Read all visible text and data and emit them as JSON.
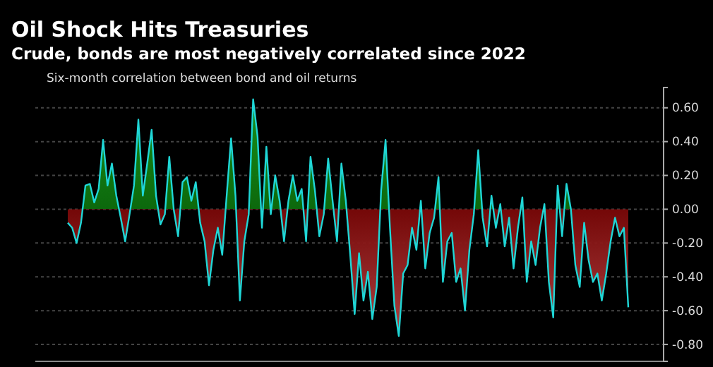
{
  "chart_data": {
    "type": "area",
    "title": "Oil Shock Hits Treasuries",
    "subtitle": "Crude, bonds are most negatively correlated since 2022",
    "annotations": [
      "Six-month correlation between bond and oil returns"
    ],
    "categories": [
      null,
      null,
      null,
      null,
      null,
      null,
      null,
      null,
      null,
      null,
      null,
      null,
      null,
      null,
      null,
      null,
      null,
      null,
      null,
      null,
      null,
      null,
      null,
      null,
      null,
      null,
      null,
      null,
      null,
      null,
      null,
      null,
      null,
      null,
      null,
      null,
      null,
      null,
      null,
      null,
      null,
      null,
      null,
      null,
      null,
      null,
      null,
      null,
      null,
      null,
      null,
      null,
      null,
      null,
      null,
      null,
      null,
      null,
      null,
      null,
      null,
      null,
      null,
      null,
      null,
      null,
      null,
      null,
      null,
      null,
      null,
      null,
      null,
      null,
      null,
      null,
      null,
      null,
      null,
      null,
      null,
      null,
      null,
      null,
      null,
      null,
      null,
      null,
      null,
      null,
      null,
      null,
      null,
      null,
      null,
      null,
      null,
      null,
      null,
      null,
      null,
      null,
      null,
      null,
      null,
      null,
      null,
      null,
      null,
      null,
      null,
      null,
      null,
      null,
      null,
      null,
      null,
      null,
      null,
      null,
      null,
      null,
      null,
      null,
      null,
      null,
      null,
      null
    ],
    "series": [
      {
        "color": "#1fd6d6",
        "values": [
          -0.08,
          -0.11,
          -0.2,
          -0.08,
          0.14,
          0.15,
          0.04,
          0.12,
          0.41,
          0.14,
          0.27,
          0.08,
          -0.05,
          -0.19,
          -0.03,
          0.14,
          0.53,
          0.08,
          0.27,
          0.47,
          0.08,
          -0.09,
          -0.03,
          0.31,
          0.0,
          -0.16,
          0.16,
          0.19,
          0.05,
          0.16,
          -0.08,
          -0.19,
          -0.45,
          -0.24,
          -0.11,
          -0.27,
          0.08,
          0.42,
          0.08,
          -0.54,
          -0.19,
          -0.03,
          0.65,
          0.43,
          -0.11,
          0.37,
          -0.03,
          0.2,
          0.05,
          -0.19,
          0.05,
          0.2,
          0.05,
          0.12,
          -0.19,
          0.31,
          0.11,
          -0.16,
          -0.03,
          0.3,
          0.05,
          -0.19,
          0.27,
          0.05,
          -0.27,
          -0.62,
          -0.26,
          -0.54,
          -0.37,
          -0.65,
          -0.46,
          0.11,
          0.41,
          -0.11,
          -0.57,
          -0.75,
          -0.38,
          -0.33,
          -0.11,
          -0.24,
          0.05,
          -0.35,
          -0.14,
          -0.05,
          0.19,
          -0.43,
          -0.19,
          -0.14,
          -0.43,
          -0.35,
          -0.6,
          -0.24,
          -0.03,
          0.35,
          -0.05,
          -0.22,
          0.08,
          -0.11,
          0.03,
          -0.22,
          -0.05,
          -0.35,
          -0.11,
          0.07,
          -0.43,
          -0.19,
          -0.33,
          -0.11,
          0.03,
          -0.43,
          -0.64,
          0.14,
          -0.16,
          0.15,
          0.0,
          -0.33,
          -0.46,
          -0.08,
          -0.3,
          -0.43,
          -0.38,
          -0.54,
          -0.38,
          -0.19,
          -0.05,
          -0.16,
          -0.11,
          -0.58
        ]
      }
    ],
    "ylim": [
      -0.9,
      0.72
    ],
    "yticks": [
      {
        "value": 0.6,
        "label": "0.60"
      },
      {
        "value": 0.4,
        "label": "0.40"
      },
      {
        "value": 0.2,
        "label": "0.20"
      },
      {
        "value": 0,
        "label": "0.00"
      },
      {
        "value": -0.2,
        "label": "-0.20"
      },
      {
        "value": -0.4,
        "label": "-0.40"
      },
      {
        "value": -0.6,
        "label": "-0.60"
      },
      {
        "value": -0.8,
        "label": "-0.80"
      }
    ],
    "grid": "y",
    "tick_labels": "y"
  }
}
